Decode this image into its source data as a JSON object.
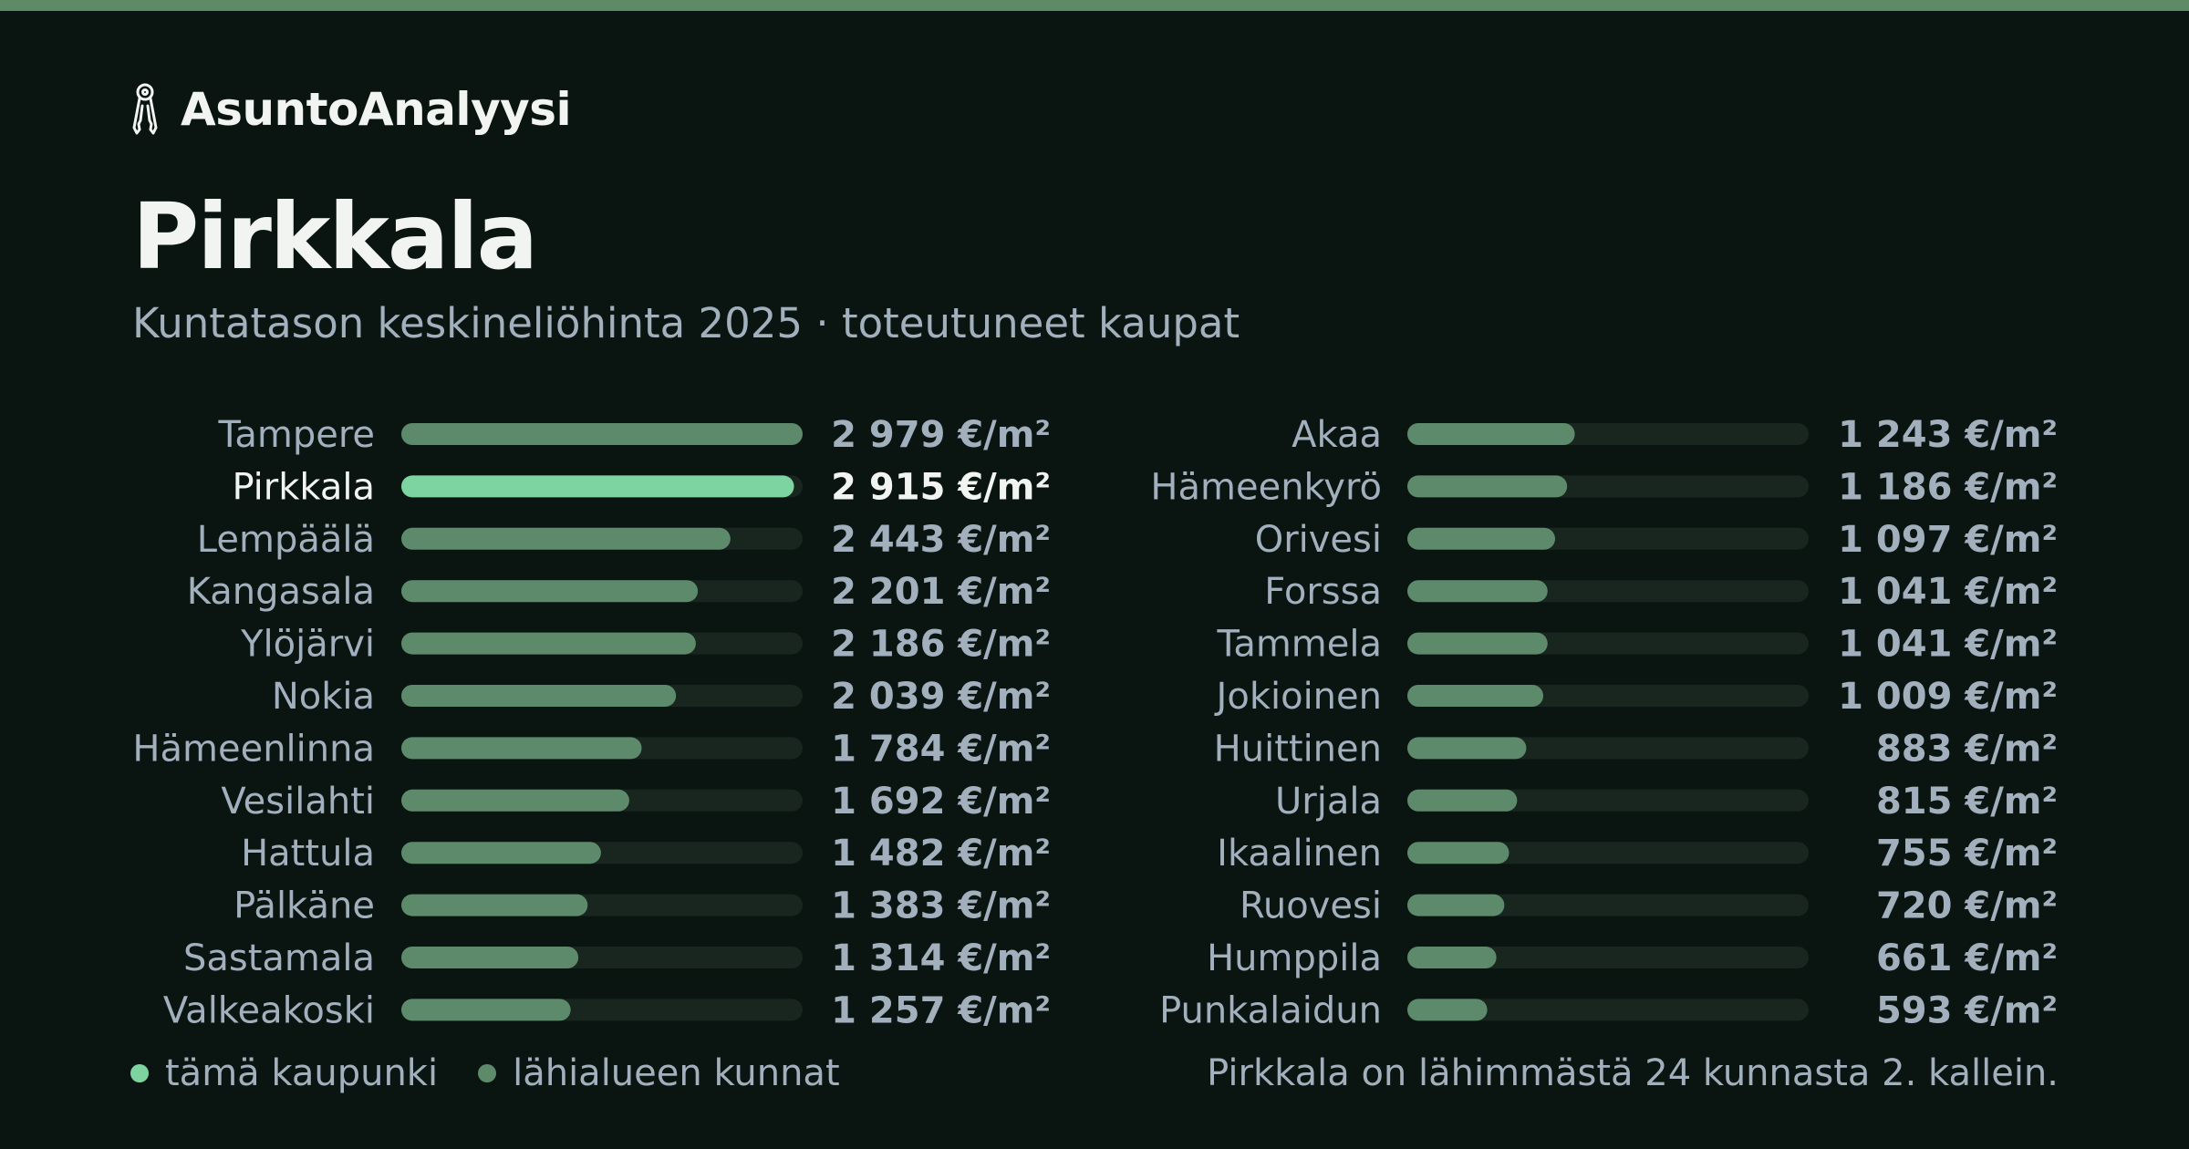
{
  "brand": {
    "name": "AsuntoAnalyysi",
    "icon": "keys-icon"
  },
  "page": {
    "title": "Pirkkala",
    "subtitle": "Kuntatason keskineliöhinta 2025 · toteutuneet kaupat"
  },
  "legend": {
    "current": "tämä kaupunki",
    "neighbors": "lähialueen kunnat"
  },
  "footnote": "Pirkkala on lähimmästä 24 kunnasta 2. kallein.",
  "colors": {
    "background": "#0a1512",
    "highlight": "#7ed4a0",
    "bar": "#5e8a6c",
    "track": "#18261f",
    "text_muted": "#a2afbc",
    "text_bright": "#f2f4f1",
    "accent_line": "#5e8a66"
  },
  "chart_data": {
    "type": "bar",
    "orientation": "horizontal",
    "title": "Kuntatason keskineliöhinta 2025 · toteutuneet kaupat",
    "unit": "€/m²",
    "highlight": "Pirkkala",
    "xlim": [
      0,
      2979
    ],
    "categories": [
      "Tampere",
      "Pirkkala",
      "Lempäälä",
      "Kangasala",
      "Ylöjärvi",
      "Nokia",
      "Hämeenlinna",
      "Vesilahti",
      "Hattula",
      "Pälkäne",
      "Sastamala",
      "Valkeakoski",
      "Akaa",
      "Hämeenkyrö",
      "Orivesi",
      "Forssa",
      "Tammela",
      "Jokioinen",
      "Huittinen",
      "Urjala",
      "Ikaalinen",
      "Ruovesi",
      "Humppila",
      "Punkalaidun"
    ],
    "values": [
      2979,
      2915,
      2443,
      2201,
      2186,
      2039,
      1784,
      1692,
      1482,
      1383,
      1314,
      1257,
      1243,
      1186,
      1097,
      1041,
      1041,
      1009,
      883,
      815,
      755,
      720,
      661,
      593
    ],
    "value_labels": [
      "2 979 €/m²",
      "2 915 €/m²",
      "2 443 €/m²",
      "2 201 €/m²",
      "2 186 €/m²",
      "2 039 €/m²",
      "1 784 €/m²",
      "1 692 €/m²",
      "1 482 €/m²",
      "1 383 €/m²",
      "1 314 €/m²",
      "1 257 €/m²",
      "1 243 €/m²",
      "1 186 €/m²",
      "1 097 €/m²",
      "1 041 €/m²",
      "1 041 €/m²",
      "1 009 €/m²",
      "883 €/m²",
      "815 €/m²",
      "755 €/m²",
      "720 €/m²",
      "661 €/m²",
      "593 €/m²"
    ]
  }
}
